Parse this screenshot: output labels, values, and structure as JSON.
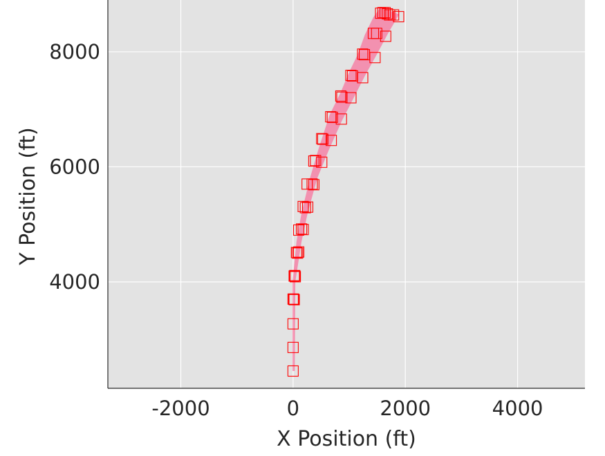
{
  "chart_data": {
    "type": "scatter",
    "title": "",
    "xlabel": "X Position (ft)",
    "ylabel": "Y Position (ft)",
    "xlim": [
      -3300,
      5200
    ],
    "ylim": [
      2150,
      8900
    ],
    "xticks": [
      -2000,
      0,
      2000,
      4000
    ],
    "yticks": [
      4000,
      6000,
      8000
    ],
    "xtick_labels": [
      "-2000",
      "0",
      "2000",
      "4000"
    ],
    "ytick_labels": [
      "4000",
      "6000",
      "8000"
    ],
    "grid": true,
    "legend": null,
    "colors": {
      "background": "#e3e3e3",
      "grid": "#ffffff",
      "marker": "#ff0000",
      "band": "#ff4f86"
    },
    "band": {
      "left": [
        [
          -10,
          2450
        ],
        [
          -10,
          4000
        ],
        [
          60,
          4700
        ],
        [
          150,
          5200
        ],
        [
          300,
          5800
        ],
        [
          450,
          6300
        ],
        [
          650,
          6900
        ],
        [
          850,
          7300
        ],
        [
          1000,
          7650
        ],
        [
          1150,
          7950
        ],
        [
          1280,
          8300
        ],
        [
          1430,
          8600
        ],
        [
          1560,
          8780
        ]
      ],
      "right": [
        [
          30,
          2450
        ],
        [
          40,
          4000
        ],
        [
          150,
          4700
        ],
        [
          260,
          5200
        ],
        [
          430,
          5800
        ],
        [
          640,
          6300
        ],
        [
          870,
          6800
        ],
        [
          1080,
          7200
        ],
        [
          1290,
          7600
        ],
        [
          1490,
          7950
        ],
        [
          1680,
          8300
        ],
        [
          1800,
          8500
        ],
        [
          1890,
          8650
        ]
      ]
    },
    "series": [
      {
        "marker": "square",
        "points": [
          [
            0,
            2450
          ],
          [
            0,
            2860
          ],
          [
            0,
            3270
          ],
          [
            0,
            3700
          ],
          [
            10,
            3700
          ],
          [
            20,
            3690
          ],
          [
            20,
            4100
          ],
          [
            40,
            4090
          ],
          [
            30,
            4110
          ],
          [
            60,
            4510
          ],
          [
            100,
            4520
          ],
          [
            80,
            4500
          ],
          [
            100,
            4900
          ],
          [
            150,
            4920
          ],
          [
            180,
            4910
          ],
          [
            180,
            5310
          ],
          [
            220,
            5290
          ],
          [
            260,
            5300
          ],
          [
            250,
            5700
          ],
          [
            340,
            5700
          ],
          [
            370,
            5690
          ],
          [
            370,
            6100
          ],
          [
            510,
            6080
          ],
          [
            400,
            6110
          ],
          [
            510,
            6490
          ],
          [
            680,
            6460
          ],
          [
            530,
            6480
          ],
          [
            670,
            6870
          ],
          [
            860,
            6830
          ],
          [
            700,
            6860
          ],
          [
            850,
            7230
          ],
          [
            1030,
            7200
          ],
          [
            870,
            7210
          ],
          [
            1030,
            7590
          ],
          [
            1240,
            7550
          ],
          [
            1060,
            7580
          ],
          [
            1240,
            7960
          ],
          [
            1460,
            7900
          ],
          [
            1270,
            7950
          ],
          [
            1430,
            8320
          ],
          [
            1490,
            8320
          ],
          [
            1650,
            8270
          ],
          [
            1560,
            8670
          ],
          [
            1600,
            8680
          ],
          [
            1640,
            8680
          ],
          [
            1680,
            8660
          ],
          [
            1720,
            8640
          ],
          [
            1790,
            8640
          ],
          [
            1880,
            8610
          ]
        ]
      }
    ]
  }
}
